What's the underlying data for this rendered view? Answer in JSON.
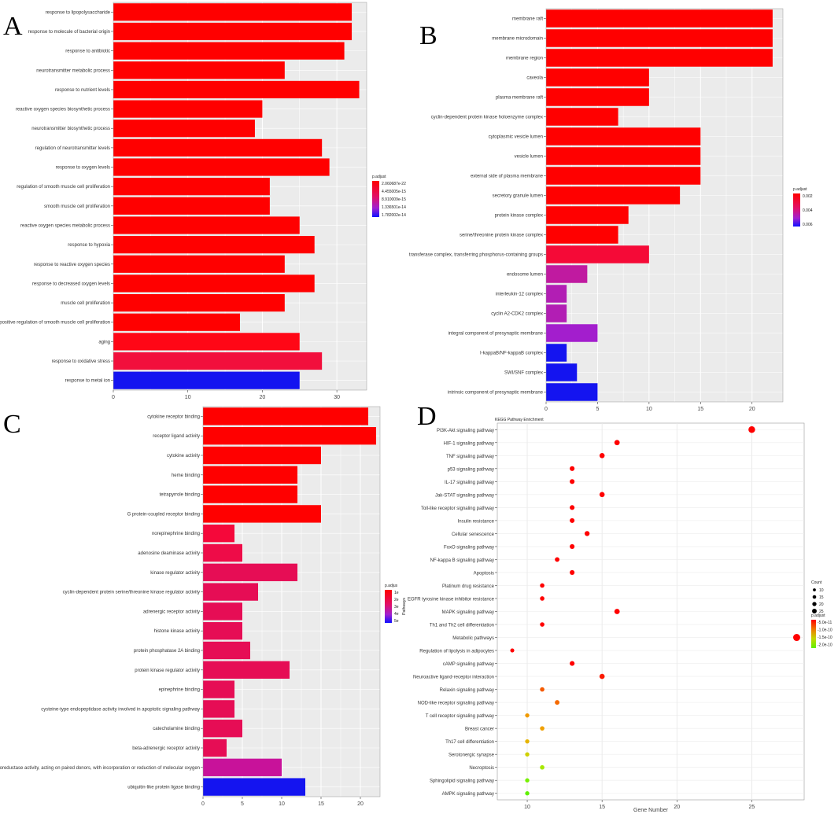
{
  "figure": {
    "panel_labels": [
      "A",
      "B",
      "C",
      "D"
    ]
  },
  "chart_data": [
    {
      "panel": "A",
      "type": "bar",
      "orientation": "horizontal",
      "categories": [
        "response to lipopolysaccharide",
        "response to molecule of bacterial origin",
        "response to antibiotic",
        "neurotransmitter metabolic process",
        "response to nutrient levels",
        "reactive oxygen species biosynthetic process",
        "neurotransmitter biosynthetic process",
        "regulation of neurotransmitter levels",
        "response to oxygen levels",
        "regulation of smooth muscle cell proliferation",
        "smooth muscle cell proliferation",
        "reactive oxygen species metabolic process",
        "response to hypoxia",
        "response to reactive oxygen species",
        "response to decreased oxygen levels",
        "muscle cell proliferation",
        "positive regulation of smooth muscle cell proliferation",
        "aging",
        "response to oxidative stress",
        "response to metal ion"
      ],
      "values": [
        32,
        32,
        31,
        23,
        33,
        20,
        19,
        28,
        29,
        21,
        21,
        25,
        27,
        23,
        27,
        23,
        17,
        25,
        28,
        25
      ],
      "colors": [
        "#ff0000",
        "#ff0000",
        "#ff0000",
        "#ff0000",
        "#ff0000",
        "#ff0000",
        "#ff0000",
        "#ff0000",
        "#ff0000",
        "#ff0000",
        "#ff0000",
        "#ff0000",
        "#ff0000",
        "#ff0000",
        "#ff0000",
        "#ff0000",
        "#ff0000",
        "#ff0716",
        "#f20f3c",
        "#1414f0"
      ],
      "xlim": [
        0,
        34
      ],
      "xticks": [
        "0",
        "10",
        "20",
        "30"
      ],
      "xtick_values": [
        0,
        10,
        20,
        30
      ],
      "legend": {
        "title": "p.adjust",
        "labels": [
          "2.060687e-22",
          "4.455005e-15",
          "8.910009e-15",
          "1.336501e-14",
          "1.782002e-14"
        ],
        "position": "right"
      }
    },
    {
      "panel": "B",
      "type": "bar",
      "orientation": "horizontal",
      "categories": [
        "membrane raft",
        "membrane microdomain",
        "membrane region",
        "caveola",
        "plasma membrane raft",
        "cyclin-dependent protein kinase holoenzyme complex",
        "cytoplasmic vesicle lumen",
        "vesicle lumen",
        "external side of plasma membrane",
        "secretory granule lumen",
        "protein kinase complex",
        "serine/threonine protein kinase complex",
        "transferase complex, transferring phosphorus-containing groups",
        "endosome lumen",
        "interleukin-12 complex",
        "cyclin A2-CDK2 complex",
        "integral component of presynaptic membrane",
        "I-kappaB/NF-kappaB complex",
        "SWI/SNF complex",
        "intrinsic component of presynaptic membrane"
      ],
      "values": [
        22,
        22,
        22,
        10,
        10,
        7,
        15,
        15,
        15,
        13,
        8,
        7,
        10,
        4,
        2,
        2,
        5,
        2,
        3,
        5
      ],
      "colors": [
        "#ff0000",
        "#ff0000",
        "#ff0000",
        "#ff0000",
        "#ff0000",
        "#ff0000",
        "#ff0000",
        "#ff0000",
        "#ff0000",
        "#ff0000",
        "#ff0000",
        "#ff0000",
        "#f50a37",
        "#c01aa0",
        "#b21eb4",
        "#b21eb4",
        "#a31ecd",
        "#1414f0",
        "#1414f0",
        "#1414f0"
      ],
      "xlim": [
        0,
        23
      ],
      "xticks": [
        "0",
        "5",
        "10",
        "15",
        "20"
      ],
      "xtick_values": [
        0,
        5,
        10,
        15,
        20
      ],
      "legend": {
        "title": "p.adjust",
        "labels": [
          "0.002",
          "0.004",
          "0.006"
        ],
        "position": "right"
      }
    },
    {
      "panel": "C",
      "type": "bar",
      "orientation": "horizontal",
      "categories": [
        "cytokine receptor binding",
        "receptor ligand activity",
        "cytokine activity",
        "heme binding",
        "tetrapyrrole binding",
        "G protein-coupled receptor binding",
        "norepinephrine binding",
        "adenosine deaminase activity",
        "kinase regulator activity",
        "cyclin-dependent protein serine/threonine kinase regulator activity",
        "adrenergic receptor activity",
        "histone kinase activity",
        "protein phosphatase 2A binding",
        "protein kinase regulator activity",
        "epinephrine binding",
        "cysteine-type endopeptidase activity involved in apoptotic signaling pathway",
        "catecholamine binding",
        "beta-adrenergic receptor activity",
        "oxidoreductase activity, acting on paired donors, with incorporation or reduction of molecular oxygen",
        "ubiquitin-like protein ligase binding"
      ],
      "values": [
        21,
        22,
        15,
        12,
        12,
        15,
        4,
        5,
        12,
        7,
        5,
        5,
        6,
        11,
        4,
        4,
        5,
        3,
        10,
        13
      ],
      "colors": [
        "#ff0000",
        "#ff0000",
        "#ff0000",
        "#ff0000",
        "#ff0000",
        "#ff0000",
        "#f5083a",
        "#ee0c48",
        "#e60d55",
        "#e60d55",
        "#e60d55",
        "#e60d55",
        "#e60d55",
        "#e60d55",
        "#e60d55",
        "#e60d55",
        "#e60d55",
        "#e60d55",
        "#c8129a",
        "#1414f0"
      ],
      "xlim": [
        0,
        22.5
      ],
      "xticks": [
        "0",
        "5",
        "10",
        "15",
        "20"
      ],
      "xtick_values": [
        0,
        5,
        10,
        15,
        20
      ],
      "legend": {
        "title": "p.adjus",
        "labels": [
          "1e",
          "2e",
          "3e",
          "4e",
          "5e"
        ],
        "side_label": "Pathways",
        "position": "right"
      }
    },
    {
      "panel": "D",
      "type": "scatter",
      "title": "KEGG Pathway Enrichment",
      "xlabel": "Gene Number",
      "categories": [
        "PI3K-Akt signaling pathway",
        "HIF-1 signaling pathway",
        "TNF signaling pathway",
        "p53 signaling pathway",
        "IL-17 signaling pathway",
        "Jak-STAT signaling pathway",
        "Toll-like receptor signaling pathway",
        "Insulin resistance",
        "Cellular senescence",
        "FoxO signaling pathway",
        "NF-kappa B signaling pathway",
        "Apoptosis",
        "Platinum drug resistance",
        "EGFR tyrosine kinase inhibitor resistance",
        "MAPK signaling pathway",
        "Th1 and Th2 cell differentiation",
        "Metabolic pathways",
        "Regulation of lipolysis in adipocytes",
        "cAMP signaling pathway",
        "Neuroactive ligand-receptor interaction",
        "Relaxin signaling pathway",
        "NOD-like receptor signaling pathway",
        "T cell receptor signaling pathway",
        "Breast cancer",
        "Th17 cell differentiation",
        "Serotonergic synapse",
        "Necroptosis",
        "Sphingolipid signaling pathway",
        "AMPK signaling pathway"
      ],
      "values": [
        25,
        16,
        15,
        13,
        13,
        15,
        13,
        13,
        14,
        13,
        12,
        13,
        11,
        11,
        16,
        11,
        28,
        9,
        13,
        15,
        11,
        12,
        10,
        11,
        10,
        10,
        11,
        10,
        10
      ],
      "colors": [
        "#ff0000",
        "#ff0000",
        "#ff0000",
        "#ff0000",
        "#ff0000",
        "#ff0000",
        "#ff0000",
        "#ff0000",
        "#ff0000",
        "#ff0000",
        "#ff0000",
        "#ff0000",
        "#ff0000",
        "#ff0000",
        "#ff0000",
        "#ff0000",
        "#ff0000",
        "#ff0000",
        "#ff0000",
        "#fb1a00",
        "#f55a00",
        "#f56a00",
        "#f09a00",
        "#f0a000",
        "#e6b400",
        "#cfd000",
        "#a6e800",
        "#76f000",
        "#60f000"
      ],
      "xlim": [
        8,
        28.5
      ],
      "xticks": [
        "10",
        "15",
        "20",
        "25"
      ],
      "xtick_values": [
        10,
        15,
        20,
        25
      ],
      "legend_count": {
        "title": "Count",
        "labels": [
          "10",
          "15",
          "20",
          "25"
        ],
        "values": [
          10,
          15,
          20,
          25
        ]
      },
      "legend_p": {
        "title": "p.adjust",
        "labels": [
          "-5.0e-11",
          "-1.0e-10",
          "-1.5e-10",
          "-2.0e-10"
        ],
        "colors": [
          "#ff0000",
          "#f07800",
          "#c4d800",
          "#60f000"
        ]
      }
    }
  ]
}
